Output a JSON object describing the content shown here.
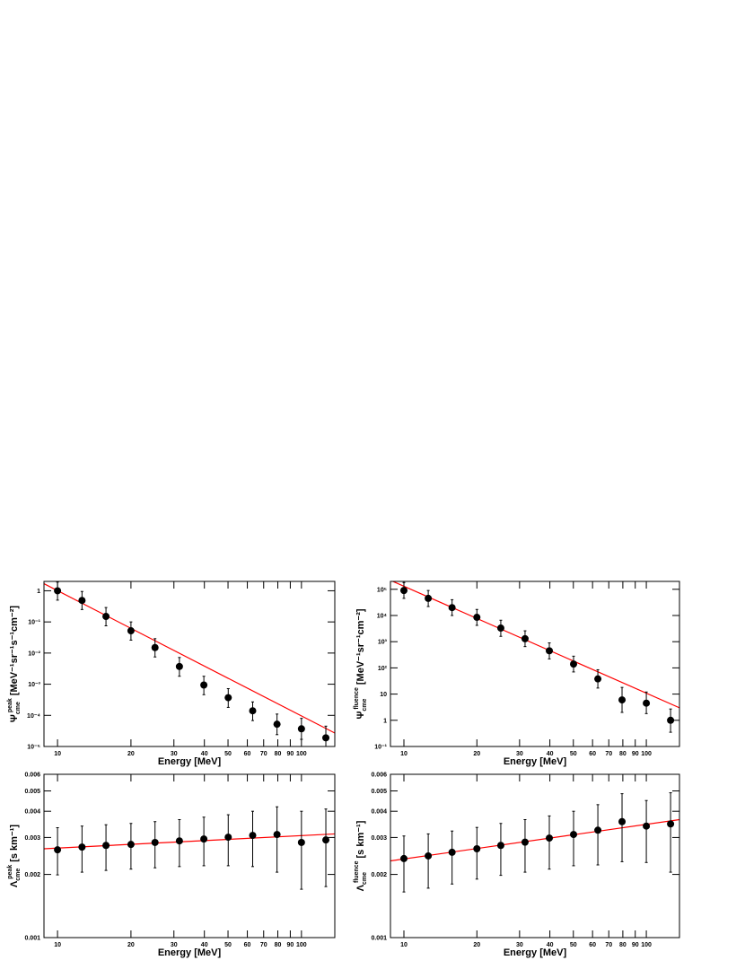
{
  "chart_data": [
    {
      "type": "scatter",
      "log_x": true,
      "log_y": true,
      "marker_color": "#000000",
      "fit_color": "#ff0000",
      "ylabel": {
        "symbol": "Ψ",
        "superscript": "peak",
        "subscript": "cme",
        "unit": "[MeV⁻¹sr⁻¹s⁻¹cm⁻²]"
      },
      "xlabel": "Energy [MeV]",
      "xlim": [
        8.8,
        137
      ],
      "xticks": [
        10,
        20,
        30,
        40,
        50,
        60,
        70,
        80,
        90,
        100
      ],
      "ylim": [
        1e-05,
        2
      ],
      "yticks": [
        1,
        {
          "value": 0.1,
          "label": "10⁻¹"
        },
        {
          "value": 0.01,
          "label": "10⁻²"
        },
        {
          "value": 0.001,
          "label": "10⁻³"
        },
        {
          "value": 0.0001,
          "label": "10⁻⁴"
        },
        {
          "value": 1e-05,
          "label": "10⁻⁵"
        }
      ],
      "x": [
        10,
        12.6,
        15.8,
        20,
        25.1,
        31.6,
        39.8,
        50.1,
        63.1,
        79.4,
        100,
        125.9
      ],
      "values": [
        1.0,
        0.49,
        0.15,
        0.052,
        0.015,
        0.0037,
        0.00094,
        0.00037,
        0.00014,
        5.2e-05,
        3.7e-05,
        1.9e-05
      ],
      "ylow": [
        0.5,
        0.25,
        0.075,
        0.026,
        0.0075,
        0.0018,
        0.00046,
        0.00018,
        6.8e-05,
        2.4e-05,
        1.7e-05,
        9e-06
      ],
      "yhigh": [
        1.9,
        0.95,
        0.29,
        0.1,
        0.029,
        0.0072,
        0.0018,
        0.00072,
        0.00027,
        0.00011,
        8e-05,
        4.5e-05
      ],
      "fit": {
        "x": [
          8.8,
          137
        ],
        "y": [
          1.69,
          2.7e-05
        ]
      }
    },
    {
      "type": "scatter",
      "log_x": true,
      "log_y": true,
      "marker_color": "#000000",
      "fit_color": "#ff0000",
      "ylabel": {
        "symbol": "Ψ",
        "superscript": "fluence",
        "subscript": "cme",
        "unit": "[MeV⁻¹sr⁻¹cm⁻²]"
      },
      "xlabel": "Energy [MeV]",
      "xlim": [
        8.8,
        137
      ],
      "xticks": [
        10,
        20,
        30,
        40,
        50,
        60,
        70,
        80,
        90,
        100
      ],
      "ylim": [
        0.1,
        200000
      ],
      "yticks": [
        {
          "value": 100000,
          "label": "10⁵"
        },
        {
          "value": 10000,
          "label": "10⁴"
        },
        {
          "value": 1000,
          "label": "10³"
        },
        {
          "value": 100,
          "label": "10²"
        },
        10,
        1,
        {
          "value": 0.1,
          "label": "10⁻¹"
        }
      ],
      "x": [
        10,
        12.6,
        15.8,
        20,
        25.1,
        31.6,
        39.8,
        50.1,
        63.1,
        79.4,
        100,
        125.9
      ],
      "values": [
        90000,
        45000,
        20000,
        8500,
        3300,
        1300,
        450,
        140,
        38,
        6,
        4.5,
        1
      ],
      "ylow": [
        45000,
        22000,
        10000,
        4200,
        1600,
        650,
        220,
        70,
        17,
        2,
        1.8,
        0.35
      ],
      "yhigh": [
        180000,
        90000,
        40000,
        17000,
        6600,
        2600,
        900,
        280,
        85,
        18,
        12,
        2.7
      ],
      "fit": {
        "x": [
          8.8,
          137
        ],
        "y": [
          220000,
          3
        ]
      }
    },
    {
      "type": "scatter",
      "log_x": true,
      "log_y": true,
      "marker_color": "#000000",
      "fit_color": "#ff0000",
      "ylabel": {
        "symbol": "Λ",
        "superscript": "peak",
        "subscript": "cme",
        "unit": "[s km⁻¹]"
      },
      "xlabel": "Energy [MeV]",
      "xlim": [
        8.8,
        137
      ],
      "xticks": [
        10,
        20,
        30,
        40,
        50,
        60,
        70,
        80,
        90,
        100
      ],
      "ylim": [
        0.001,
        0.006
      ],
      "yticks": [
        0.001,
        0.002,
        0.003,
        0.004,
        0.005,
        0.006
      ],
      "x": [
        10,
        12.6,
        15.8,
        20,
        25.1,
        31.6,
        39.8,
        50.1,
        63.1,
        79.4,
        100,
        125.9
      ],
      "values": [
        0.00262,
        0.0027,
        0.00275,
        0.00278,
        0.00284,
        0.00289,
        0.00295,
        0.00301,
        0.00307,
        0.0031,
        0.00284,
        0.00292
      ],
      "ylow": [
        0.00199,
        0.00205,
        0.00209,
        0.00212,
        0.00215,
        0.00218,
        0.0022,
        0.0022,
        0.00218,
        0.00205,
        0.0017,
        0.00175
      ],
      "yhigh": [
        0.00334,
        0.0034,
        0.00345,
        0.0035,
        0.00357,
        0.00365,
        0.00375,
        0.00385,
        0.004,
        0.0042,
        0.004,
        0.0041
      ],
      "fit": {
        "x": [
          8.8,
          137
        ],
        "y": [
          0.00265,
          0.00312
        ]
      }
    },
    {
      "type": "scatter",
      "log_x": true,
      "log_y": true,
      "marker_color": "#000000",
      "fit_color": "#ff0000",
      "ylabel": {
        "symbol": "Λ",
        "superscript": "fluence",
        "subscript": "cme",
        "unit": "[s km⁻¹]"
      },
      "xlabel": "Energy [MeV]",
      "xlim": [
        8.8,
        137
      ],
      "xticks": [
        10,
        20,
        30,
        40,
        50,
        60,
        70,
        80,
        90,
        100
      ],
      "ylim": [
        0.001,
        0.006
      ],
      "yticks": [
        0.001,
        0.002,
        0.003,
        0.004,
        0.005,
        0.006
      ],
      "x": [
        10,
        12.6,
        15.8,
        20,
        25.1,
        31.6,
        39.8,
        50.1,
        63.1,
        79.4,
        100,
        125.9
      ],
      "values": [
        0.00238,
        0.00245,
        0.00255,
        0.00265,
        0.00275,
        0.00285,
        0.00298,
        0.0031,
        0.00325,
        0.00357,
        0.0034,
        0.00348
      ],
      "ylow": [
        0.00165,
        0.00172,
        0.0018,
        0.0019,
        0.00198,
        0.00205,
        0.00212,
        0.0022,
        0.00222,
        0.0023,
        0.00228,
        0.00205
      ],
      "yhigh": [
        0.00305,
        0.00312,
        0.00322,
        0.00335,
        0.0035,
        0.00365,
        0.0038,
        0.004,
        0.0043,
        0.00485,
        0.0045,
        0.0049
      ],
      "fit": {
        "x": [
          8.8,
          137
        ],
        "y": [
          0.00232,
          0.00365
        ]
      }
    }
  ]
}
